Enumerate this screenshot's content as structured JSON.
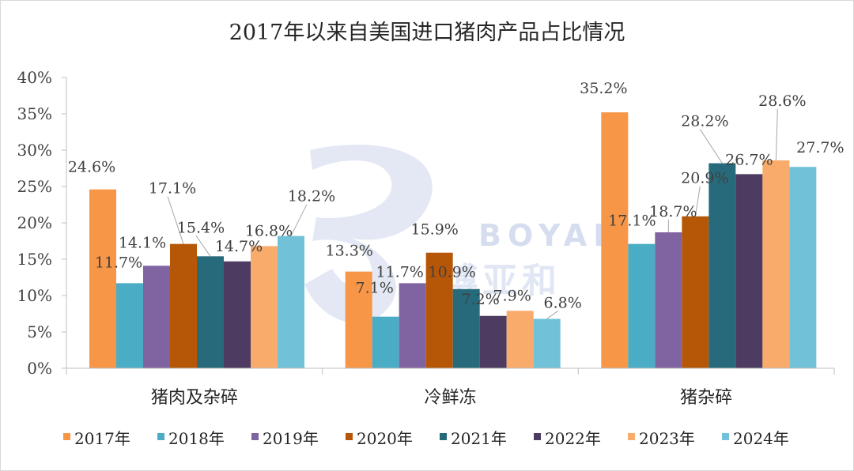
{
  "chart_data": {
    "type": "bar",
    "title": "2017年以来自美国进口猪肉产品占比情况",
    "categories": [
      "猪肉及杂碎",
      "冷鲜冻",
      "猪杂碎"
    ],
    "series": [
      {
        "name": "2017年",
        "color": "#F79646",
        "values": [
          24.6,
          13.3,
          35.2
        ],
        "labels": [
          "24.6%",
          "13.3%",
          "35.2%"
        ]
      },
      {
        "name": "2018年",
        "color": "#4BACC6",
        "values": [
          11.7,
          7.1,
          17.1
        ],
        "labels": [
          "11.7%",
          "7.1%",
          "17.1%"
        ]
      },
      {
        "name": "2019年",
        "color": "#8064A2",
        "values": [
          14.1,
          11.7,
          18.7
        ],
        "labels": [
          "14.1%",
          "11.7%",
          "18.7%"
        ]
      },
      {
        "name": "2020年",
        "color": "#B65708",
        "values": [
          17.1,
          15.9,
          20.9
        ],
        "labels": [
          "17.1%",
          "15.9%",
          "20.9%"
        ]
      },
      {
        "name": "2021年",
        "color": "#276A7C",
        "values": [
          15.4,
          10.9,
          28.2
        ],
        "labels": [
          "15.4%",
          "10.9%",
          "28.2%"
        ]
      },
      {
        "name": "2022年",
        "color": "#4D3B62",
        "values": [
          14.7,
          7.2,
          26.7
        ],
        "labels": [
          "14.7%",
          "7.2%",
          "26.7%"
        ]
      },
      {
        "name": "2023年",
        "color": "#F9AB6B",
        "values": [
          16.8,
          7.9,
          28.6
        ],
        "labels": [
          "16.8%",
          "7.9%",
          "28.6%"
        ]
      },
      {
        "name": "2024年",
        "color": "#71C2D8",
        "values": [
          18.2,
          6.8,
          27.7
        ],
        "labels": [
          "18.2%",
          "6.8%",
          "27.7%"
        ]
      }
    ],
    "yticks": [
      "0%",
      "5%",
      "10%",
      "15%",
      "20%",
      "25%",
      "30%",
      "35%",
      "40%"
    ],
    "ylim": [
      0,
      40
    ],
    "grid": false,
    "legend_position": "bottom",
    "xlabel": "",
    "ylabel": ""
  },
  "watermark": {
    "brand_latin": "BOYAR",
    "brand_cjk": "博亚和",
    "color": "#C8D2EA"
  }
}
